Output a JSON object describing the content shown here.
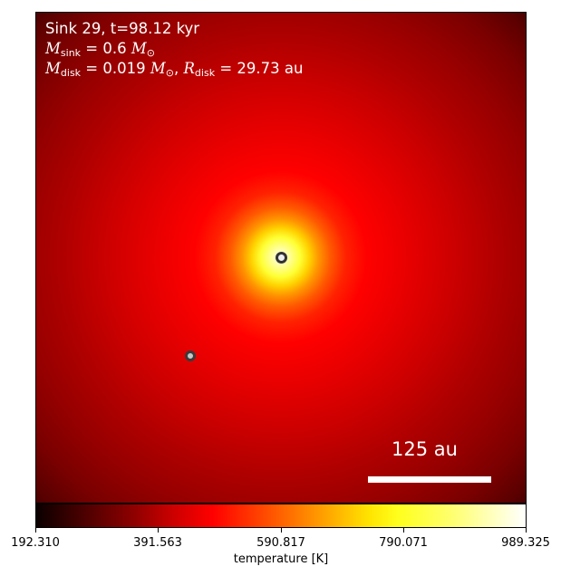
{
  "annotation": {
    "line1": "Sink 29, t=98.12 kyr",
    "sink_mass_symbol": "M",
    "sink_mass_subscript": "sink",
    "sink_mass_value": "= 0.6",
    "disk_mass_symbol": "M",
    "disk_mass_subscript": "disk",
    "disk_mass_value": "= 0.019",
    "disk_radius_symbol": "R",
    "disk_radius_subscript": "disk",
    "disk_radius_value": "= 29.73 au",
    "solar_symbol": "M",
    "solar_subscript": "⊙"
  },
  "scale_bar": {
    "label": "125 au"
  },
  "colorbar": {
    "colormap": "hot",
    "ticks": [
      "192.310",
      "391.563",
      "590.817",
      "790.071",
      "989.325"
    ],
    "label": "temperature [K]"
  },
  "colors": {
    "sink_fill": "#eeeeee",
    "sink_edge": "#333333",
    "scale_bar": "#ffffff"
  }
}
